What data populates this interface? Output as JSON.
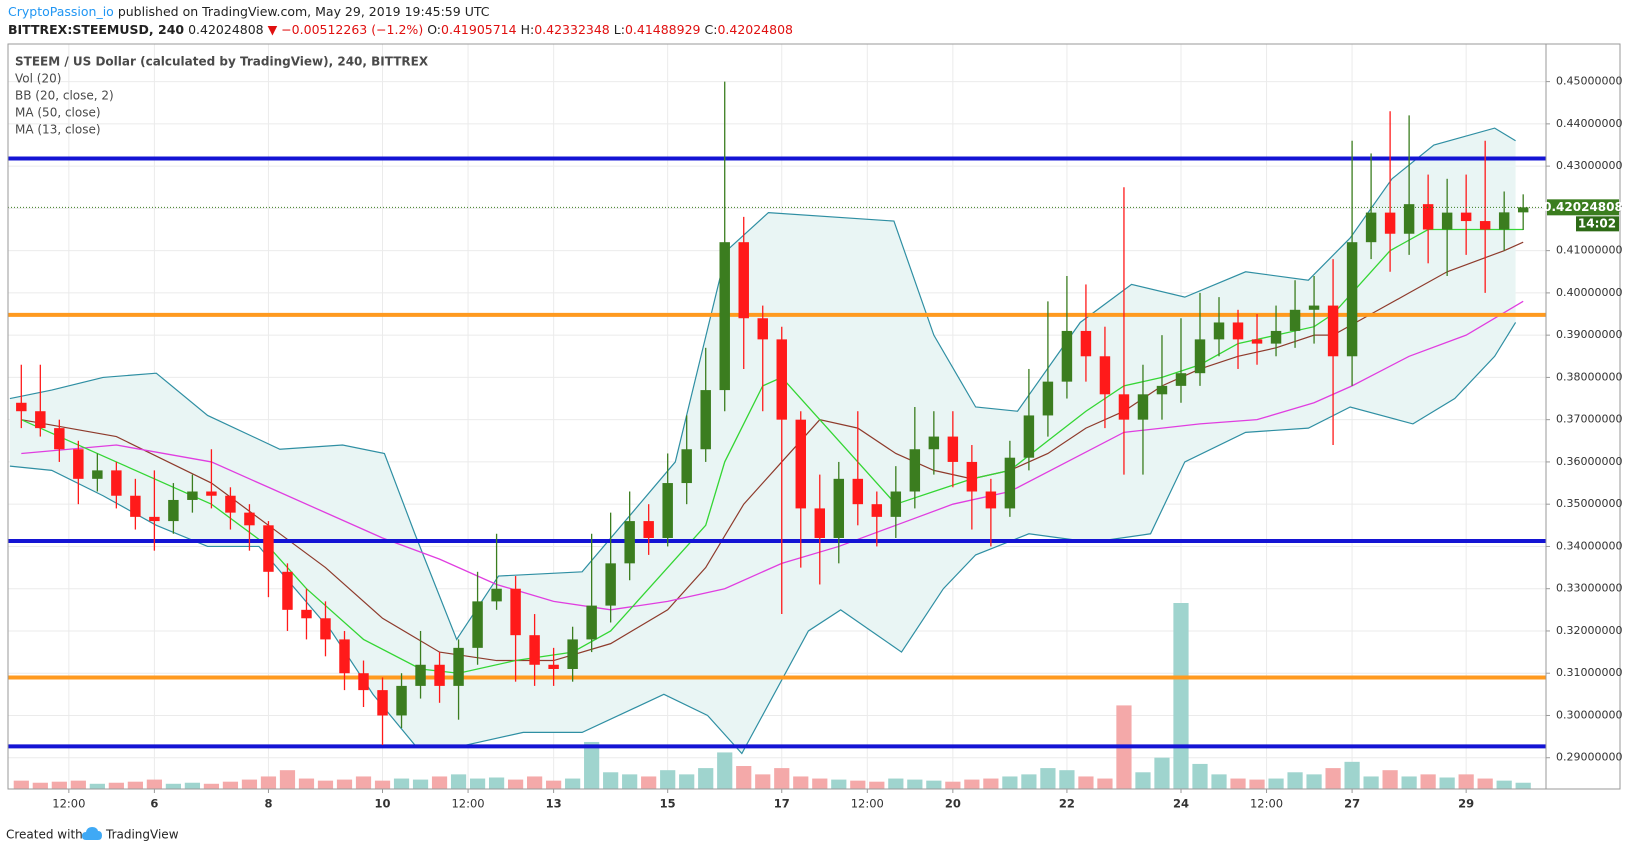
{
  "header": {
    "author": "CryptoPassion_io",
    "published": "published on TradingView.com, May 29, 2019 19:45:59 UTC",
    "symbol": "BITTREX:STEEMUSD, 240",
    "price": "0.42024808",
    "change": "▼ −0.00512263 (−1.2%)",
    "o_label": "O:",
    "o": "0.41905714",
    "h_label": "H:",
    "h": "0.42332348",
    "l_label": "L:",
    "l": "0.41488929",
    "c_label": "C:",
    "c": "0.42024808"
  },
  "chart_data": {
    "type": "candlestick",
    "title": "STEEM / US Dollar (calculated by TradingView), 240, BITTREX",
    "up_color": "#3b7d1f",
    "down_color": "#ff1a1a",
    "open": [
      0.374,
      0.372,
      0.368,
      0.363,
      0.356,
      0.358,
      0.352,
      0.347,
      0.346,
      0.351,
      0.353,
      0.352,
      0.348,
      0.345,
      0.334,
      0.325,
      0.323,
      0.318,
      0.31,
      0.306,
      0.3,
      0.307,
      0.312,
      0.307,
      0.316,
      0.327,
      0.33,
      0.319,
      0.312,
      0.311,
      0.318,
      0.326,
      0.336,
      0.346,
      0.342,
      0.355,
      0.363,
      0.377,
      0.412,
      0.394,
      0.389,
      0.37,
      0.349,
      0.342,
      0.356,
      0.35,
      0.347,
      0.353,
      0.363,
      0.366,
      0.36,
      0.353,
      0.349,
      0.361,
      0.371,
      0.379,
      0.391,
      0.385,
      0.376,
      0.37,
      0.376,
      0.378,
      0.381,
      0.389,
      0.393,
      0.389,
      0.388,
      0.391,
      0.396,
      0.397,
      0.385,
      0.412,
      0.419,
      0.414,
      0.421,
      0.415,
      0.419,
      0.417,
      0.415,
      0.41905714
    ],
    "high": [
      0.383,
      0.383,
      0.37,
      0.365,
      0.362,
      0.36,
      0.356,
      0.358,
      0.355,
      0.357,
      0.363,
      0.354,
      0.35,
      0.346,
      0.336,
      0.33,
      0.327,
      0.32,
      0.313,
      0.309,
      0.31,
      0.32,
      0.315,
      0.318,
      0.334,
      0.343,
      0.333,
      0.324,
      0.316,
      0.321,
      0.343,
      0.348,
      0.353,
      0.35,
      0.362,
      0.371,
      0.387,
      0.45,
      0.418,
      0.397,
      0.392,
      0.372,
      0.357,
      0.36,
      0.372,
      0.353,
      0.359,
      0.373,
      0.372,
      0.372,
      0.364,
      0.356,
      0.365,
      0.382,
      0.398,
      0.404,
      0.402,
      0.392,
      0.425,
      0.383,
      0.39,
      0.394,
      0.4,
      0.399,
      0.396,
      0.395,
      0.397,
      0.403,
      0.404,
      0.408,
      0.436,
      0.433,
      0.443,
      0.442,
      0.428,
      0.427,
      0.428,
      0.436,
      0.424,
      0.42332348
    ],
    "low": [
      0.368,
      0.366,
      0.36,
      0.35,
      0.353,
      0.349,
      0.344,
      0.339,
      0.343,
      0.348,
      0.349,
      0.344,
      0.339,
      0.328,
      0.32,
      0.318,
      0.314,
      0.306,
      0.302,
      0.293,
      0.297,
      0.304,
      0.303,
      0.299,
      0.312,
      0.325,
      0.308,
      0.307,
      0.307,
      0.308,
      0.315,
      0.322,
      0.332,
      0.338,
      0.34,
      0.35,
      0.36,
      0.372,
      0.382,
      0.372,
      0.324,
      0.335,
      0.331,
      0.336,
      0.345,
      0.34,
      0.342,
      0.349,
      0.357,
      0.354,
      0.344,
      0.34,
      0.347,
      0.358,
      0.366,
      0.375,
      0.379,
      0.368,
      0.357,
      0.357,
      0.37,
      0.374,
      0.378,
      0.385,
      0.382,
      0.383,
      0.385,
      0.387,
      0.388,
      0.364,
      0.378,
      0.408,
      0.405,
      0.409,
      0.407,
      0.404,
      0.409,
      0.4,
      0.41,
      0.41488929
    ],
    "close": [
      0.372,
      0.368,
      0.363,
      0.356,
      0.358,
      0.352,
      0.347,
      0.346,
      0.351,
      0.353,
      0.352,
      0.348,
      0.345,
      0.334,
      0.325,
      0.323,
      0.318,
      0.31,
      0.306,
      0.3,
      0.307,
      0.312,
      0.307,
      0.316,
      0.327,
      0.33,
      0.319,
      0.312,
      0.311,
      0.318,
      0.326,
      0.336,
      0.346,
      0.342,
      0.355,
      0.363,
      0.377,
      0.412,
      0.394,
      0.389,
      0.37,
      0.349,
      0.342,
      0.356,
      0.35,
      0.347,
      0.353,
      0.363,
      0.366,
      0.36,
      0.353,
      0.349,
      0.361,
      0.371,
      0.379,
      0.391,
      0.385,
      0.376,
      0.37,
      0.376,
      0.378,
      0.381,
      0.389,
      0.393,
      0.389,
      0.388,
      0.391,
      0.396,
      0.397,
      0.385,
      0.412,
      0.419,
      0.414,
      0.421,
      0.415,
      0.419,
      0.417,
      0.415,
      0.41905714,
      0.42024808
    ],
    "volume": {
      "name": "Vol (20)",
      "up_color": "#9fd4ce",
      "down_color": "#f4a9a9",
      "values": [
        8,
        6,
        7,
        8,
        5,
        6,
        7,
        9,
        5,
        6,
        5,
        7,
        9,
        12,
        18,
        10,
        8,
        9,
        12,
        8,
        10,
        9,
        12,
        14,
        10,
        11,
        9,
        12,
        8,
        10,
        45,
        16,
        14,
        12,
        18,
        14,
        20,
        35,
        22,
        14,
        20,
        12,
        10,
        9,
        8,
        7,
        10,
        9,
        8,
        7,
        9,
        10,
        12,
        14,
        20,
        18,
        12,
        10,
        80,
        16,
        30,
        178,
        24,
        14,
        10,
        9,
        10,
        16,
        14,
        20,
        26,
        12,
        18,
        12,
        14,
        11,
        14,
        10,
        8,
        6
      ]
    },
    "bb": {
      "name": "BB (20, close, 2)",
      "color": "#2f8fa3",
      "fill": "#e9f5f4",
      "upper": {
        "x": [
          -0.6,
          1.6,
          4.3,
          7.1,
          9.8,
          13.6,
          16.9,
          19.1,
          20.7,
          22.9,
          25.1,
          29.5,
          34.4,
          37.1,
          39.3,
          45.9,
          48,
          50.2,
          52.4,
          55.7,
          58.4,
          61.2,
          64.4,
          67.7,
          69.9,
          72.1,
          74.3,
          77.5,
          78.6
        ],
        "values": [
          0.375,
          0.377,
          0.38,
          0.381,
          0.371,
          0.363,
          0.364,
          0.362,
          0.343,
          0.318,
          0.333,
          0.334,
          0.36,
          0.41,
          0.419,
          0.417,
          0.39,
          0.373,
          0.372,
          0.393,
          0.402,
          0.399,
          0.405,
          0.403,
          0.413,
          0.427,
          0.435,
          0.439,
          0.436
        ]
      },
      "lower": {
        "x": [
          -0.6,
          1.6,
          4.3,
          7.1,
          9.8,
          12.5,
          16.3,
          18.5,
          20.7,
          23.4,
          26.4,
          29.5,
          33.8,
          36.1,
          37.9,
          41.4,
          43.1,
          46.3,
          48.5,
          50.2,
          53,
          56.3,
          59.4,
          61.2,
          64.4,
          67.7,
          69.9,
          73.2,
          75.4,
          77.5,
          78.6
        ],
        "values": [
          0.359,
          0.358,
          0.352,
          0.345,
          0.34,
          0.34,
          0.32,
          0.305,
          0.293,
          0.293,
          0.296,
          0.296,
          0.305,
          0.3,
          0.291,
          0.32,
          0.325,
          0.315,
          0.33,
          0.338,
          0.343,
          0.341,
          0.343,
          0.36,
          0.367,
          0.368,
          0.373,
          0.369,
          0.375,
          0.385,
          0.393
        ]
      },
      "basis": {
        "color": "#8e3b2c",
        "x": [
          0,
          5,
          10,
          13,
          16,
          19,
          22,
          25,
          28,
          31,
          34,
          36,
          38,
          40,
          42,
          44,
          46,
          48,
          50,
          52,
          54,
          56,
          58,
          60,
          62,
          64,
          66,
          68,
          69,
          71,
          73,
          75,
          78,
          79
        ],
        "values": [
          0.37,
          0.366,
          0.355,
          0.345,
          0.335,
          0.323,
          0.315,
          0.313,
          0.313,
          0.317,
          0.325,
          0.335,
          0.35,
          0.36,
          0.37,
          0.368,
          0.362,
          0.358,
          0.356,
          0.358,
          0.362,
          0.368,
          0.372,
          0.378,
          0.382,
          0.385,
          0.387,
          0.39,
          0.39,
          0.395,
          0.4,
          0.405,
          0.41,
          0.412
        ]
      }
    },
    "series": [
      {
        "name": "MA (50, close)",
        "color": "#e03ee0",
        "x": [
          0,
          5,
          10,
          13,
          16,
          19,
          22,
          25,
          28,
          31,
          34,
          37,
          40,
          43,
          46,
          49,
          52,
          55,
          58,
          62,
          65,
          68,
          70,
          73,
          76,
          79
        ],
        "values": [
          0.362,
          0.364,
          0.36,
          0.354,
          0.348,
          0.342,
          0.337,
          0.331,
          0.327,
          0.325,
          0.327,
          0.33,
          0.336,
          0.34,
          0.345,
          0.35,
          0.353,
          0.36,
          0.367,
          0.369,
          0.37,
          0.374,
          0.378,
          0.385,
          0.39,
          0.398
        ]
      },
      {
        "name": "MA (13, close)",
        "color": "#34d634",
        "x": [
          0,
          5,
          10,
          13,
          15,
          18,
          21,
          23,
          26,
          29,
          31,
          33,
          36,
          37,
          39,
          40,
          42,
          44,
          46,
          48,
          50,
          52,
          54,
          56,
          58,
          60,
          62,
          64,
          66,
          68,
          69,
          70,
          72,
          74,
          76,
          79
        ],
        "values": [
          0.37,
          0.36,
          0.35,
          0.34,
          0.33,
          0.318,
          0.311,
          0.31,
          0.313,
          0.315,
          0.32,
          0.33,
          0.345,
          0.36,
          0.378,
          0.38,
          0.37,
          0.36,
          0.35,
          0.353,
          0.356,
          0.358,
          0.365,
          0.372,
          0.378,
          0.38,
          0.383,
          0.388,
          0.39,
          0.392,
          0.395,
          0.4,
          0.41,
          0.415,
          0.415,
          0.415
        ]
      }
    ],
    "hlines": [
      {
        "value": 0.4318,
        "color": "#1414d4"
      },
      {
        "value": 0.3948,
        "color": "#ff9a1f"
      },
      {
        "value": 0.3413,
        "color": "#1414d4"
      },
      {
        "value": 0.309,
        "color": "#ff9a1f"
      },
      {
        "value": 0.2927,
        "color": "#1414d4"
      }
    ],
    "last": {
      "value": 0.42024808,
      "countdown": "14:02",
      "color": "#3b7d1f",
      "countdown_color": "#2d6a16"
    },
    "xlim": [
      -0.7,
      80.2
    ],
    "ylim": [
      0.2826,
      0.4589
    ],
    "yticks": [
      {
        "value": 0.29,
        "label": "0.29000000"
      },
      {
        "value": 0.3,
        "label": "0.30000000"
      },
      {
        "value": 0.31,
        "label": "0.31000000"
      },
      {
        "value": 0.32,
        "label": "0.32000000"
      },
      {
        "value": 0.33,
        "label": "0.33000000"
      },
      {
        "value": 0.34,
        "label": "0.34000000"
      },
      {
        "value": 0.35,
        "label": "0.35000000"
      },
      {
        "value": 0.36,
        "label": "0.36000000"
      },
      {
        "value": 0.37,
        "label": "0.37000000"
      },
      {
        "value": 0.38,
        "label": "0.38000000"
      },
      {
        "value": 0.39,
        "label": "0.39000000"
      },
      {
        "value": 0.4,
        "label": "0.40000000"
      },
      {
        "value": 0.41,
        "label": "0.41000000"
      },
      {
        "value": 0.42,
        "label": "0.42000000"
      },
      {
        "value": 0.43,
        "label": "0.43000000"
      },
      {
        "value": 0.44,
        "label": "0.44000000"
      },
      {
        "value": 0.45,
        "label": "0.45000000"
      }
    ],
    "xticks": [
      {
        "value": 2.5,
        "label": "12:00"
      },
      {
        "value": 7,
        "label": "6"
      },
      {
        "value": 13,
        "label": "8"
      },
      {
        "value": 19,
        "label": "10"
      },
      {
        "value": 23.5,
        "label": "12:00"
      },
      {
        "value": 28,
        "label": "13"
      },
      {
        "value": 34,
        "label": "15"
      },
      {
        "value": 40,
        "label": "17"
      },
      {
        "value": 44.5,
        "label": "12:00"
      },
      {
        "value": 49,
        "label": "20"
      },
      {
        "value": 55,
        "label": "22"
      },
      {
        "value": 61,
        "label": "24"
      },
      {
        "value": 65.5,
        "label": "12:00"
      },
      {
        "value": 70,
        "label": "27"
      },
      {
        "value": 76,
        "label": "29"
      }
    ],
    "grid": true
  },
  "footer": {
    "text": "Created with",
    "brand": "TradingView"
  }
}
